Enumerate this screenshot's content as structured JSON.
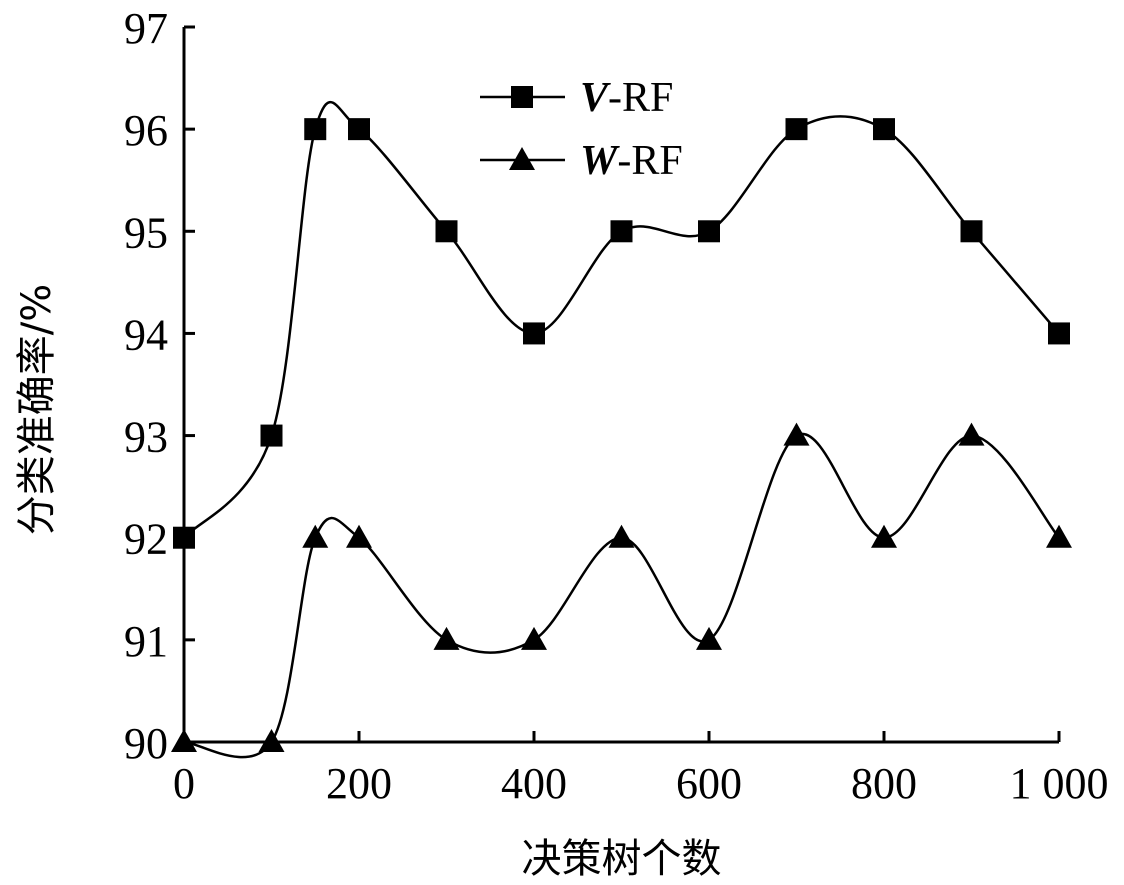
{
  "chart_data": {
    "type": "line",
    "xlabel": "决策树个数",
    "ylabel": "分类准确率/%",
    "xlim": [
      0,
      1000
    ],
    "ylim": [
      90,
      97
    ],
    "x_ticks": [
      "0",
      "200",
      "400",
      "600",
      "800",
      "1 000"
    ],
    "y_ticks": [
      "90",
      "91",
      "92",
      "93",
      "94",
      "95",
      "96",
      "97"
    ],
    "x_tick_values": [
      0,
      200,
      400,
      600,
      800,
      1000
    ],
    "y_tick_values": [
      90,
      91,
      92,
      93,
      94,
      95,
      96,
      97
    ],
    "legend_position": "top-center",
    "grid": false,
    "smooth": true,
    "series": [
      {
        "name_prefix": "V",
        "name_suffix": "-RF",
        "marker": "square",
        "color": "#000000",
        "x": [
          0,
          100,
          150,
          200,
          300,
          400,
          500,
          600,
          700,
          800,
          900,
          1000
        ],
        "y": [
          92,
          93,
          96,
          96,
          95,
          94,
          95,
          95,
          96,
          96,
          95,
          94
        ]
      },
      {
        "name_prefix": "W",
        "name_suffix": "-RF",
        "marker": "triangle",
        "color": "#000000",
        "x": [
          0,
          100,
          150,
          200,
          300,
          400,
          500,
          600,
          700,
          800,
          900,
          1000
        ],
        "y": [
          90,
          90,
          92,
          92,
          91,
          91,
          92,
          91,
          93,
          92,
          93,
          92
        ]
      }
    ]
  }
}
